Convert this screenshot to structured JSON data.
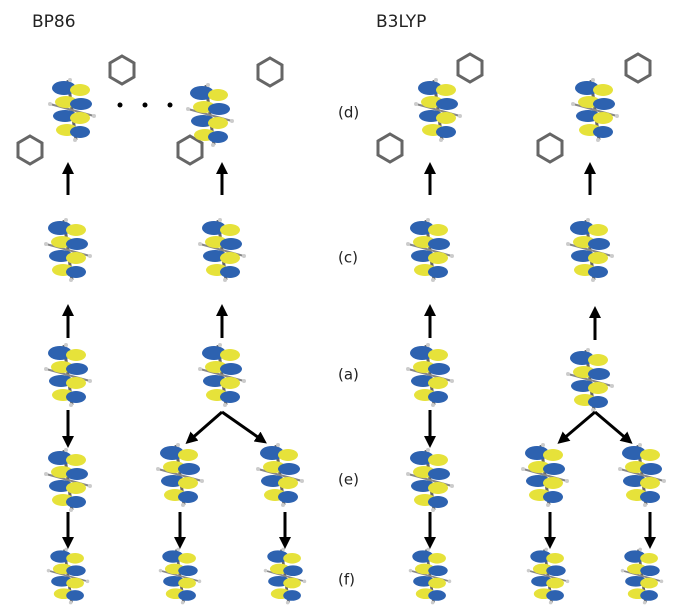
{
  "header": {
    "left": "BP86",
    "right": "B3LYP"
  },
  "row_labels": [
    "(d)",
    "(c)",
    "(a)",
    "(e)",
    "(f)"
  ]
}
